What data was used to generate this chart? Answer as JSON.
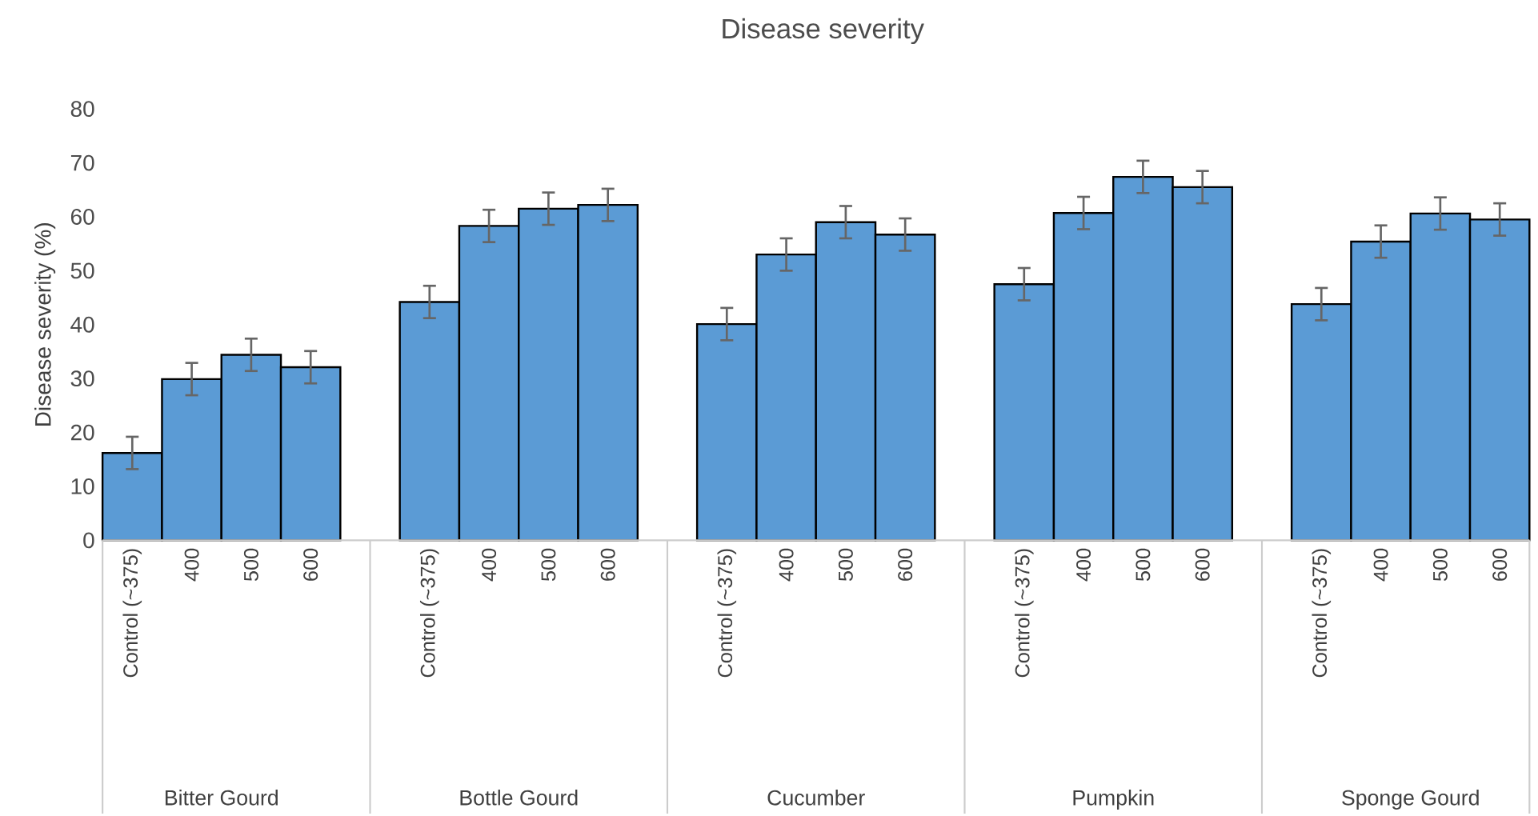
{
  "chart_data": {
    "type": "bar",
    "title": "Disease severity",
    "ylabel": "Disease severity (%)",
    "categories": [
      "Control (~375)",
      "400",
      "500",
      "600",
      null,
      "Control (~375)",
      "400",
      "500",
      "600",
      null,
      "Control (~375)",
      "400",
      "500",
      "600",
      null,
      "Control (~375)",
      "400",
      "500",
      "600",
      null,
      "Control (~375)",
      "400",
      "500",
      "600"
    ],
    "values": [
      16.2,
      29.9,
      34.4,
      32.1,
      null,
      44.2,
      58.3,
      61.5,
      62.2,
      null,
      40.1,
      53.0,
      59.0,
      56.7,
      null,
      47.5,
      60.7,
      67.4,
      65.5,
      null,
      43.8,
      55.4,
      60.6,
      59.5
    ],
    "errors": [
      3,
      3,
      3,
      3,
      null,
      3,
      3,
      3,
      3,
      null,
      3,
      3,
      3,
      3,
      null,
      3,
      3,
      3,
      3,
      null,
      3,
      3,
      3,
      3
    ],
    "color": "#5b9bd5",
    "ylim": [
      0,
      80
    ],
    "yticks": [
      0,
      10,
      20,
      30,
      40,
      50,
      60,
      70,
      80
    ],
    "annotations": [
      "Bitter Gourd",
      "Bottle Gourd",
      "Cucumber",
      "Pumpkin",
      "Sponge Gourd"
    ]
  }
}
